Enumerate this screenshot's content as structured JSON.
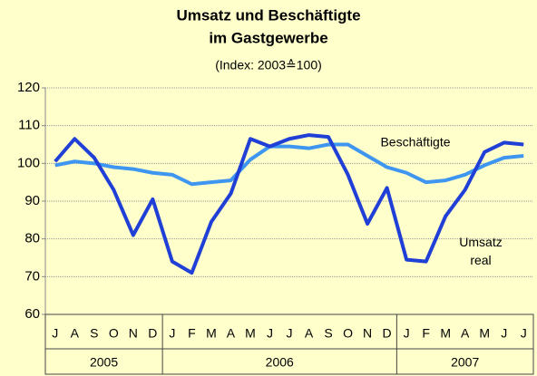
{
  "chart_data": {
    "type": "line",
    "title": "Umsatz und Beschäftigte",
    "title2": "im Gastgewerbe",
    "subtitle": "(Index: 2003≙100)",
    "groups": [
      {
        "label": "2005",
        "categories": [
          "J",
          "A",
          "S",
          "O",
          "N",
          "D"
        ]
      },
      {
        "label": "2006",
        "categories": [
          "J",
          "F",
          "M",
          "A",
          "M",
          "J",
          "J",
          "A",
          "S",
          "O",
          "N",
          "D"
        ]
      },
      {
        "label": "2007",
        "categories": [
          "J",
          "F",
          "M",
          "A",
          "M",
          "J",
          "J"
        ]
      }
    ],
    "series": [
      {
        "name": "Umsatz real",
        "color": "#1f3fd6",
        "width": 4,
        "values": [
          100.5,
          106.5,
          101.5,
          93,
          81,
          90.5,
          74,
          71,
          84.5,
          92,
          106.5,
          104.5,
          106.5,
          107.5,
          107,
          97,
          84,
          93.5,
          74.5,
          74,
          86,
          93,
          103,
          105.5,
          105
        ]
      },
      {
        "name": "Beschäftigte",
        "color": "#3f96f0",
        "width": 4,
        "values": [
          99.5,
          100.5,
          100,
          99,
          98.5,
          97.5,
          97,
          94.5,
          95,
          95.5,
          101,
          104.5,
          104.5,
          104,
          105,
          105,
          102,
          99,
          97.5,
          95,
          95.5,
          97,
          99.5,
          101.5,
          102
        ]
      }
    ],
    "ylim": [
      60,
      120
    ],
    "yticks": [
      60,
      70,
      80,
      90,
      100,
      110,
      120
    ],
    "grid": true
  }
}
